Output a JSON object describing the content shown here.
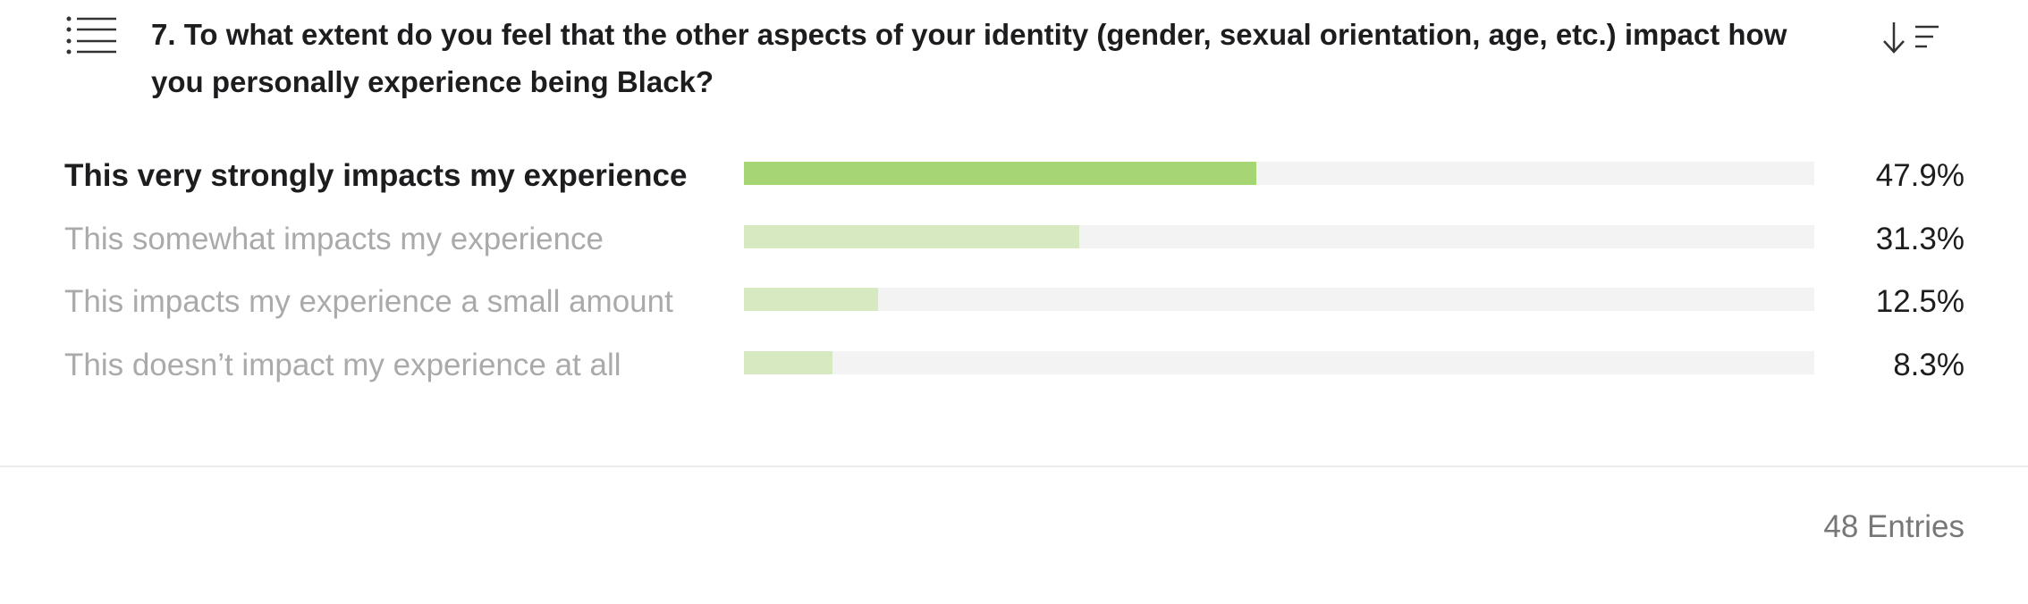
{
  "chart_data": {
    "type": "hbar",
    "title": "7. To what extent do you feel that the other aspects of your identity (gender, sexual orientation, age, etc.) impact how you personally experience being Black?",
    "categories": [
      "This very strongly impacts my experience",
      "This somewhat impacts my experience",
      "This impacts my experience a small amount",
      "This doesn’t impact my experience at all"
    ],
    "values": [
      47.9,
      31.3,
      12.5,
      8.3
    ],
    "value_labels": [
      "47.9%",
      "31.3%",
      "12.5%",
      "8.3%"
    ],
    "colors": [
      "#a6d674",
      "#d6e9c1",
      "#d6e9c1",
      "#d6e9c1"
    ],
    "xlim": [
      0,
      100
    ],
    "footer": "48 Entries"
  }
}
